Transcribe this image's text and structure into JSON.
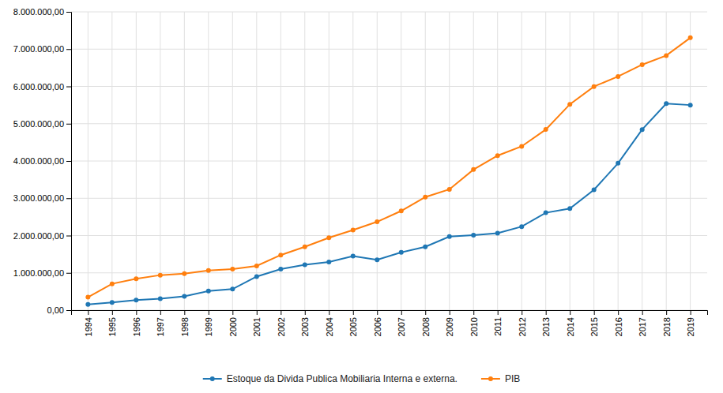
{
  "chart_data": {
    "type": "line",
    "x": [
      1994,
      1995,
      1996,
      1997,
      1998,
      1999,
      2000,
      2001,
      2002,
      2003,
      2004,
      2005,
      2006,
      2007,
      2008,
      2009,
      2010,
      2011,
      2012,
      2013,
      2014,
      2015,
      2016,
      2017,
      2018,
      2019
    ],
    "series": [
      {
        "name": "Estoque da Divida Publica Mobiliaria Interna e externa.",
        "marker": "o",
        "values": [
          153000,
          208000,
          269000,
          308000,
          370000,
          514000,
          564000,
          900000,
          1100000,
          1215000,
          1290000,
          1450000,
          1350000,
          1550000,
          1700000,
          1973000,
          2012000,
          2065000,
          2240000,
          2612000,
          2724000,
          3227000,
          3940000,
          4843000,
          5540000,
          5500000
        ]
      },
      {
        "name": "PIB",
        "marker": "o",
        "values": [
          349000,
          706000,
          843000,
          939000,
          980000,
          1065000,
          1101000,
          1185000,
          1477000,
          1699000,
          1942000,
          2147000,
          2369000,
          2661000,
          3032000,
          3239000,
          3770000,
          4143000,
          4392000,
          4844000,
          5521000,
          5996000,
          6267000,
          6583000,
          6828000,
          7305000
        ]
      }
    ],
    "xlim": [
      1993.3,
      2019.7
    ],
    "xticks": [
      1994,
      1995,
      1996,
      1997,
      1998,
      1999,
      2000,
      2001,
      2002,
      2003,
      2004,
      2005,
      2006,
      2007,
      2008,
      2009,
      2010,
      2011,
      2012,
      2013,
      2014,
      2015,
      2016,
      2017,
      2018,
      2019
    ],
    "ylim": [
      0,
      8000000
    ],
    "yticks": [
      {
        "value": 0,
        "label": "0,00"
      },
      {
        "value": 1000000,
        "label": "1.000.000,00"
      },
      {
        "value": 2000000,
        "label": "2.000.000,00"
      },
      {
        "value": 3000000,
        "label": "3.000.000,00"
      },
      {
        "value": 4000000,
        "label": "4.000.000,00"
      },
      {
        "value": 5000000,
        "label": "5.000.000,00"
      },
      {
        "value": 6000000,
        "label": "6.000.000,00"
      },
      {
        "value": 7000000,
        "label": "7.000.000,00"
      },
      {
        "value": 8000000,
        "label": "8.000.000,00"
      }
    ],
    "grid": true,
    "legend": "bottom"
  }
}
